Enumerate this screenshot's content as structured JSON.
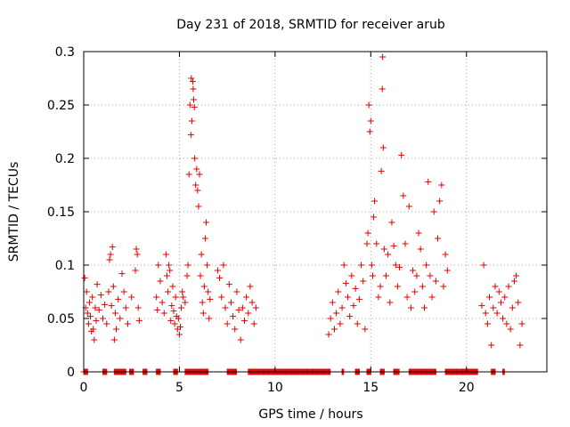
{
  "chart_data": {
    "type": "scatter",
    "title": "Day 231 of 2018, SRMTID for receiver arub",
    "xlabel": "GPS time / hours",
    "ylabel": "SRMTID / TECUs",
    "xlim": [
      0,
      24.2
    ],
    "ylim": [
      0,
      0.3
    ],
    "xticks": [
      0,
      5,
      10,
      15,
      20
    ],
    "xtick_labels": [
      "0",
      "5",
      "10",
      "15",
      "20"
    ],
    "yticks": [
      0,
      0.05,
      0.1,
      0.15,
      0.2,
      0.25,
      0.3
    ],
    "ytick_labels": [
      "0",
      "0.05",
      "0.1",
      "0.15",
      "0.2",
      "0.25",
      "0.3"
    ],
    "grid": true,
    "marker": "+",
    "color": "#e00000",
    "series": [
      {
        "name": "SRMTID",
        "points": [
          [
            0.05,
            0.088
          ],
          [
            0.1,
            0.06
          ],
          [
            0.15,
            0.075
          ],
          [
            0.2,
            0.055
          ],
          [
            0.25,
            0.045
          ],
          [
            0.3,
            0.065
          ],
          [
            0.35,
            0.052
          ],
          [
            0.4,
            0.038
          ],
          [
            0.45,
            0.07
          ],
          [
            0.5,
            0.04
          ],
          [
            0.55,
            0.03
          ],
          [
            0.6,
            0.06
          ],
          [
            0.65,
            0.048
          ],
          [
            0.7,
            0.082
          ],
          [
            0.8,
            0.058
          ],
          [
            0.9,
            0.072
          ],
          [
            1.0,
            0.05
          ],
          [
            1.1,
            0.063
          ],
          [
            1.2,
            0.045
          ],
          [
            1.3,
            0.075
          ],
          [
            1.35,
            0.105
          ],
          [
            1.4,
            0.11
          ],
          [
            1.45,
            0.062
          ],
          [
            1.5,
            0.117
          ],
          [
            1.55,
            0.08
          ],
          [
            1.6,
            0.03
          ],
          [
            1.65,
            0.055
          ],
          [
            1.7,
            0.04
          ],
          [
            1.8,
            0.068
          ],
          [
            1.9,
            0.05
          ],
          [
            2.0,
            0.092
          ],
          [
            2.1,
            0.075
          ],
          [
            2.2,
            0.06
          ],
          [
            2.3,
            0.045
          ],
          [
            2.5,
            0.07
          ],
          [
            2.7,
            0.095
          ],
          [
            2.75,
            0.115
          ],
          [
            2.8,
            0.11
          ],
          [
            2.85,
            0.06
          ],
          [
            2.9,
            0.048
          ],
          [
            3.8,
            0.07
          ],
          [
            3.85,
            0.058
          ],
          [
            3.9,
            0.1
          ],
          [
            4.0,
            0.085
          ],
          [
            4.1,
            0.065
          ],
          [
            4.2,
            0.055
          ],
          [
            4.3,
            0.11
          ],
          [
            4.35,
            0.09
          ],
          [
            4.4,
            0.075
          ],
          [
            4.45,
            0.1
          ],
          [
            4.5,
            0.095
          ],
          [
            4.55,
            0.048
          ],
          [
            4.6,
            0.062
          ],
          [
            4.65,
            0.08
          ],
          [
            4.7,
            0.057
          ],
          [
            4.75,
            0.045
          ],
          [
            4.8,
            0.07
          ],
          [
            4.85,
            0.052
          ],
          [
            4.9,
            0.04
          ],
          [
            4.95,
            0.05
          ],
          [
            5.0,
            0.035
          ],
          [
            5.05,
            0.042
          ],
          [
            5.1,
            0.06
          ],
          [
            5.15,
            0.075
          ],
          [
            5.2,
            0.07
          ],
          [
            5.3,
            0.065
          ],
          [
            5.4,
            0.09
          ],
          [
            5.45,
            0.1
          ],
          [
            5.5,
            0.185
          ],
          [
            5.55,
            0.25
          ],
          [
            5.6,
            0.222
          ],
          [
            5.62,
            0.275
          ],
          [
            5.65,
            0.235
          ],
          [
            5.7,
            0.272
          ],
          [
            5.72,
            0.265
          ],
          [
            5.75,
            0.255
          ],
          [
            5.78,
            0.248
          ],
          [
            5.8,
            0.2
          ],
          [
            5.85,
            0.175
          ],
          [
            5.9,
            0.19
          ],
          [
            5.95,
            0.17
          ],
          [
            6.0,
            0.155
          ],
          [
            6.05,
            0.185
          ],
          [
            6.1,
            0.09
          ],
          [
            6.15,
            0.11
          ],
          [
            6.2,
            0.065
          ],
          [
            6.25,
            0.055
          ],
          [
            6.3,
            0.08
          ],
          [
            6.35,
            0.125
          ],
          [
            6.4,
            0.14
          ],
          [
            6.45,
            0.1
          ],
          [
            6.5,
            0.075
          ],
          [
            6.55,
            0.05
          ],
          [
            6.6,
            0.068
          ],
          [
            7.0,
            0.095
          ],
          [
            7.1,
            0.088
          ],
          [
            7.2,
            0.07
          ],
          [
            7.3,
            0.1
          ],
          [
            7.4,
            0.06
          ],
          [
            7.5,
            0.045
          ],
          [
            7.6,
            0.082
          ],
          [
            7.7,
            0.065
          ],
          [
            7.8,
            0.052
          ],
          [
            7.9,
            0.04
          ],
          [
            8.0,
            0.075
          ],
          [
            8.1,
            0.058
          ],
          [
            8.2,
            0.03
          ],
          [
            8.3,
            0.06
          ],
          [
            8.4,
            0.048
          ],
          [
            8.5,
            0.07
          ],
          [
            8.6,
            0.055
          ],
          [
            8.7,
            0.08
          ],
          [
            8.8,
            0.065
          ],
          [
            8.9,
            0.045
          ],
          [
            9.0,
            0.06
          ],
          [
            12.8,
            0.035
          ],
          [
            12.9,
            0.05
          ],
          [
            13.0,
            0.065
          ],
          [
            13.1,
            0.04
          ],
          [
            13.2,
            0.055
          ],
          [
            13.3,
            0.075
          ],
          [
            13.4,
            0.045
          ],
          [
            13.5,
            0.06
          ],
          [
            13.6,
            0.1
          ],
          [
            13.7,
            0.083
          ],
          [
            13.8,
            0.07
          ],
          [
            13.9,
            0.052
          ],
          [
            14.0,
            0.09
          ],
          [
            14.1,
            0.062
          ],
          [
            14.2,
            0.078
          ],
          [
            14.3,
            0.045
          ],
          [
            14.4,
            0.068
          ],
          [
            14.5,
            0.1
          ],
          [
            14.6,
            0.085
          ],
          [
            14.7,
            0.04
          ],
          [
            14.8,
            0.12
          ],
          [
            14.85,
            0.13
          ],
          [
            14.9,
            0.25
          ],
          [
            14.95,
            0.225
          ],
          [
            15.0,
            0.235
          ],
          [
            15.05,
            0.1
          ],
          [
            15.1,
            0.09
          ],
          [
            15.15,
            0.145
          ],
          [
            15.2,
            0.16
          ],
          [
            15.3,
            0.12
          ],
          [
            15.4,
            0.07
          ],
          [
            15.5,
            0.08
          ],
          [
            15.55,
            0.188
          ],
          [
            15.6,
            0.265
          ],
          [
            15.62,
            0.295
          ],
          [
            15.65,
            0.21
          ],
          [
            15.7,
            0.115
          ],
          [
            15.8,
            0.09
          ],
          [
            15.9,
            0.11
          ],
          [
            16.0,
            0.065
          ],
          [
            16.1,
            0.14
          ],
          [
            16.2,
            0.118
          ],
          [
            16.3,
            0.1
          ],
          [
            16.4,
            0.08
          ],
          [
            16.5,
            0.098
          ],
          [
            16.6,
            0.203
          ],
          [
            16.7,
            0.165
          ],
          [
            16.8,
            0.12
          ],
          [
            16.9,
            0.07
          ],
          [
            17.0,
            0.155
          ],
          [
            17.1,
            0.06
          ],
          [
            17.2,
            0.095
          ],
          [
            17.3,
            0.075
          ],
          [
            17.4,
            0.09
          ],
          [
            17.5,
            0.13
          ],
          [
            17.6,
            0.115
          ],
          [
            17.7,
            0.08
          ],
          [
            17.8,
            0.06
          ],
          [
            17.9,
            0.1
          ],
          [
            18.0,
            0.178
          ],
          [
            18.1,
            0.09
          ],
          [
            18.2,
            0.07
          ],
          [
            18.3,
            0.15
          ],
          [
            18.4,
            0.085
          ],
          [
            18.5,
            0.125
          ],
          [
            18.6,
            0.16
          ],
          [
            18.7,
            0.175
          ],
          [
            18.8,
            0.08
          ],
          [
            18.9,
            0.11
          ],
          [
            19.0,
            0.095
          ],
          [
            20.8,
            0.062
          ],
          [
            20.9,
            0.1
          ],
          [
            21.0,
            0.055
          ],
          [
            21.1,
            0.045
          ],
          [
            21.2,
            0.07
          ],
          [
            21.3,
            0.025
          ],
          [
            21.4,
            0.06
          ],
          [
            21.5,
            0.08
          ],
          [
            21.6,
            0.055
          ],
          [
            21.7,
            0.075
          ],
          [
            21.8,
            0.065
          ],
          [
            21.9,
            0.05
          ],
          [
            22.0,
            0.07
          ],
          [
            22.1,
            0.045
          ],
          [
            22.2,
            0.08
          ],
          [
            22.3,
            0.04
          ],
          [
            22.4,
            0.06
          ],
          [
            22.5,
            0.085
          ],
          [
            22.6,
            0.09
          ],
          [
            22.7,
            0.065
          ],
          [
            22.8,
            0.025
          ],
          [
            22.9,
            0.045
          ]
        ]
      }
    ],
    "zero_segments": [
      [
        0.0,
        0.2
      ],
      [
        1.0,
        1.2
      ],
      [
        1.6,
        2.2
      ],
      [
        2.4,
        2.6
      ],
      [
        3.1,
        3.3
      ],
      [
        3.8,
        4.0
      ],
      [
        4.7,
        4.9
      ],
      [
        5.3,
        6.5
      ],
      [
        7.5,
        8.0
      ],
      [
        8.6,
        12.9
      ],
      [
        13.5,
        13.6
      ],
      [
        14.2,
        14.4
      ],
      [
        14.8,
        15.0
      ],
      [
        15.5,
        15.7
      ],
      [
        16.2,
        16.5
      ],
      [
        17.0,
        18.4
      ],
      [
        18.9,
        20.6
      ],
      [
        21.3,
        21.5
      ],
      [
        21.9,
        22.0
      ]
    ]
  }
}
